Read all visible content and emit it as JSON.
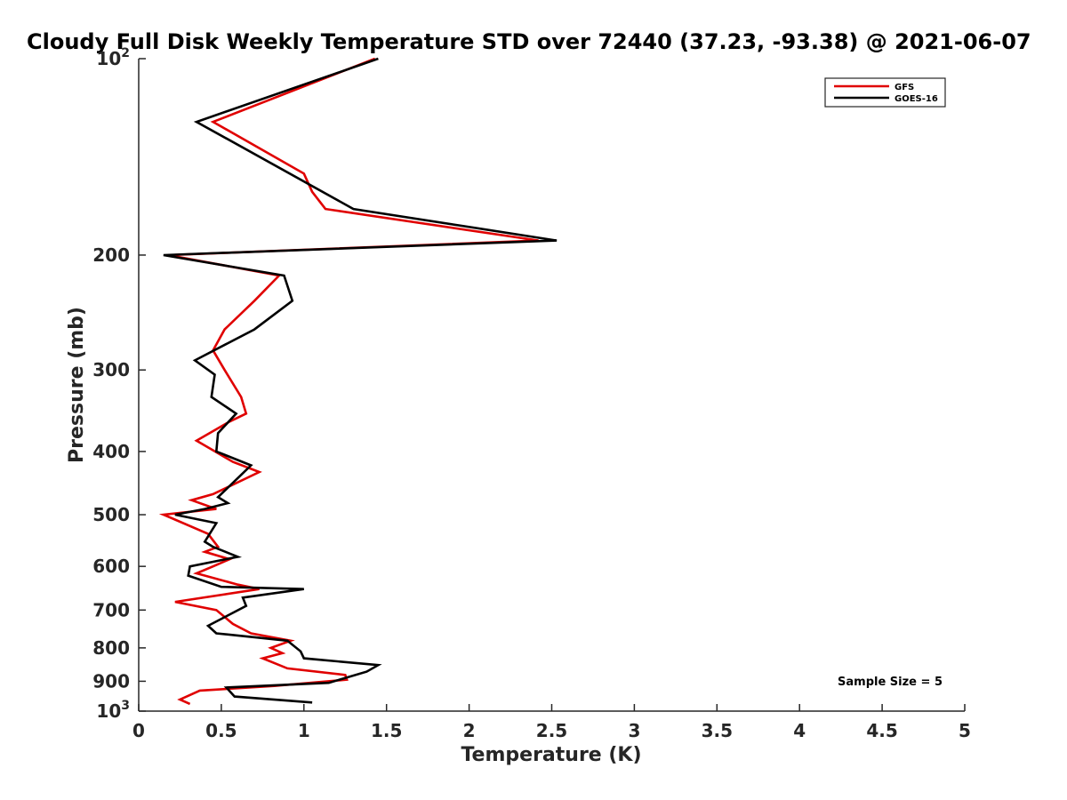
{
  "chart_data": {
    "type": "line",
    "title": "Cloudy Full Disk Weekly Temperature STD over 72440 (37.23, -93.38) @ 2021-06-07",
    "xlabel": "Temperature (K)",
    "ylabel": "Pressure (mb)",
    "xlim": [
      0,
      5
    ],
    "ylim": [
      100,
      1000
    ],
    "y_scale": "log",
    "y_reversed": true,
    "grid": false,
    "legend_placement": "top-right",
    "x_ticks": [
      {
        "value": 0,
        "label": "0"
      },
      {
        "value": 0.5,
        "label": "0.5"
      },
      {
        "value": 1,
        "label": "1"
      },
      {
        "value": 1.5,
        "label": "1.5"
      },
      {
        "value": 2,
        "label": "2"
      },
      {
        "value": 2.5,
        "label": "2.5"
      },
      {
        "value": 3,
        "label": "3"
      },
      {
        "value": 3.5,
        "label": "3.5"
      },
      {
        "value": 4,
        "label": "4"
      },
      {
        "value": 4.5,
        "label": "4.5"
      },
      {
        "value": 5,
        "label": "5"
      }
    ],
    "y_ticks": [
      {
        "value": 100,
        "base": "10",
        "exp": "2"
      },
      {
        "value": 200,
        "label": "200"
      },
      {
        "value": 300,
        "label": "300"
      },
      {
        "value": 400,
        "label": "400"
      },
      {
        "value": 500,
        "label": "500"
      },
      {
        "value": 600,
        "label": "600"
      },
      {
        "value": 700,
        "label": "700"
      },
      {
        "value": 800,
        "label": "800"
      },
      {
        "value": 900,
        "label": "900"
      },
      {
        "value": 1000,
        "base": "10",
        "exp": "3"
      }
    ],
    "series": [
      {
        "name": "GFS",
        "color": "#e00000",
        "points": [
          [
            1.43,
            100
          ],
          [
            0.45,
            125
          ],
          [
            1.0,
            150
          ],
          [
            1.05,
            160
          ],
          [
            1.13,
            170
          ],
          [
            2.42,
            190
          ],
          [
            0.18,
            200
          ],
          [
            0.85,
            215
          ],
          [
            0.7,
            235
          ],
          [
            0.52,
            260
          ],
          [
            0.45,
            280
          ],
          [
            0.52,
            300
          ],
          [
            0.62,
            330
          ],
          [
            0.65,
            350
          ],
          [
            0.55,
            360
          ],
          [
            0.35,
            385
          ],
          [
            0.57,
            415
          ],
          [
            0.73,
            430
          ],
          [
            0.45,
            465
          ],
          [
            0.32,
            475
          ],
          [
            0.47,
            490
          ],
          [
            0.15,
            500
          ],
          [
            0.42,
            535
          ],
          [
            0.48,
            560
          ],
          [
            0.4,
            570
          ],
          [
            0.55,
            585
          ],
          [
            0.45,
            600
          ],
          [
            0.35,
            615
          ],
          [
            0.6,
            640
          ],
          [
            0.73,
            650
          ],
          [
            0.22,
            680
          ],
          [
            0.47,
            700
          ],
          [
            0.57,
            735
          ],
          [
            0.68,
            760
          ],
          [
            0.92,
            780
          ],
          [
            0.8,
            800
          ],
          [
            0.87,
            815
          ],
          [
            0.75,
            830
          ],
          [
            0.9,
            860
          ],
          [
            1.25,
            880
          ],
          [
            1.26,
            895
          ],
          [
            0.82,
            915
          ],
          [
            0.37,
            930
          ],
          [
            0.25,
            960
          ],
          [
            0.31,
            975
          ]
        ]
      },
      {
        "name": "GOES-16",
        "color": "#000000",
        "points": [
          [
            1.45,
            100
          ],
          [
            0.35,
            125
          ],
          [
            1.3,
            170
          ],
          [
            2.53,
            190
          ],
          [
            0.15,
            200
          ],
          [
            0.88,
            215
          ],
          [
            0.93,
            235
          ],
          [
            0.7,
            260
          ],
          [
            0.34,
            290
          ],
          [
            0.46,
            305
          ],
          [
            0.44,
            330
          ],
          [
            0.59,
            350
          ],
          [
            0.48,
            375
          ],
          [
            0.47,
            400
          ],
          [
            0.68,
            420
          ],
          [
            0.48,
            470
          ],
          [
            0.54,
            480
          ],
          [
            0.4,
            490
          ],
          [
            0.22,
            500
          ],
          [
            0.47,
            515
          ],
          [
            0.4,
            550
          ],
          [
            0.45,
            560
          ],
          [
            0.6,
            580
          ],
          [
            0.31,
            600
          ],
          [
            0.3,
            620
          ],
          [
            0.5,
            645
          ],
          [
            1.0,
            650
          ],
          [
            0.63,
            670
          ],
          [
            0.65,
            690
          ],
          [
            0.42,
            740
          ],
          [
            0.47,
            760
          ],
          [
            0.9,
            780
          ],
          [
            0.98,
            810
          ],
          [
            1.0,
            830
          ],
          [
            1.45,
            850
          ],
          [
            1.38,
            870
          ],
          [
            1.15,
            905
          ],
          [
            0.53,
            920
          ],
          [
            0.58,
            950
          ],
          [
            1.05,
            970
          ]
        ]
      }
    ],
    "annotation": "Sample Size = 5"
  }
}
